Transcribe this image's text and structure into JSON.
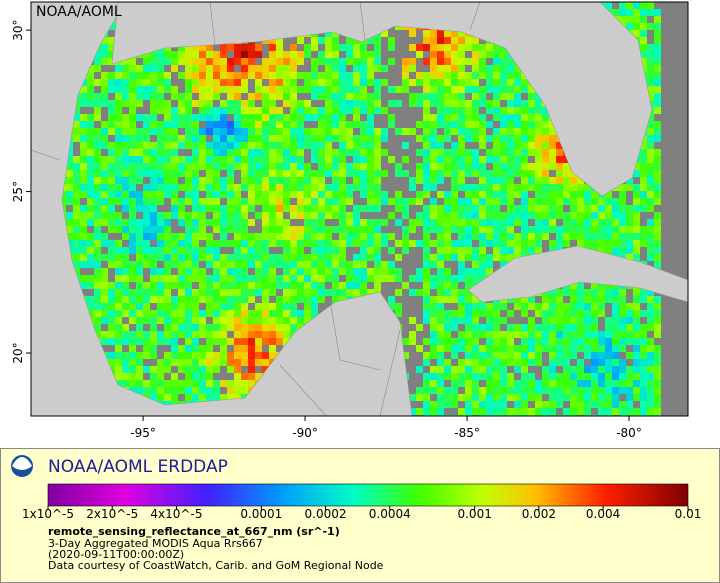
{
  "map": {
    "watermark": "NOAA/AOML",
    "lon_range": [
      -98.46,
      -78.18
    ],
    "lat_range": [
      18.05,
      30.87
    ],
    "lat_ticks": [
      {
        "value": 20,
        "label": "20°"
      },
      {
        "value": 25,
        "label": "25°"
      },
      {
        "value": 30,
        "label": "30°"
      }
    ],
    "lon_ticks": [
      {
        "value": -95,
        "label": "-95°"
      },
      {
        "value": -90,
        "label": "-90°"
      },
      {
        "value": -85,
        "label": "-85°"
      },
      {
        "value": -80,
        "label": "-80°"
      }
    ]
  },
  "legend": {
    "title": "NOAA/AOML ERDDAP",
    "colorbar": {
      "scale": "log",
      "range": [
        1e-05,
        0.01
      ],
      "ticks": [
        {
          "value": 1e-05,
          "label": "1x10^-5"
        },
        {
          "value": 2e-05,
          "label": "2x10^-5"
        },
        {
          "value": 4e-05,
          "label": "4x10^-5"
        },
        0.0001,
        0.0002,
        0.0004,
        0.001,
        0.002,
        0.004,
        0.01
      ]
    },
    "variable": "remote_sensing_reflectance_at_667_nm (sr^-1)",
    "lines": [
      "3-Day Aggregated MODIS Aqua Rrs667",
      "(2020-09-11T00:00:00Z)",
      "Data courtesy of CoastWatch, Carib. and GoM Regional Node"
    ]
  }
}
